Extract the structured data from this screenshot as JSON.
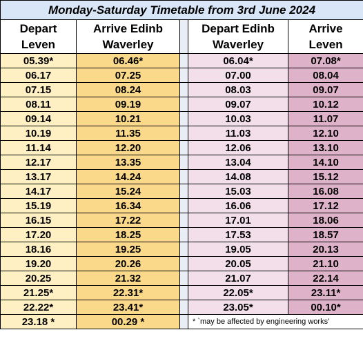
{
  "title": "Monday-Saturday Timetable from 3rd June 2024",
  "headers": {
    "depart_leven": [
      "Depart",
      "Leven"
    ],
    "arrive_edinb": [
      "Arrive Edinb",
      "Waverley"
    ],
    "depart_edinb": [
      "Depart Edinb",
      "Waverley"
    ],
    "arrive_leven": [
      "Arrive",
      "Leven"
    ]
  },
  "southbound": [
    [
      "05.39*",
      "06.46*"
    ],
    [
      "06.17",
      "07.25"
    ],
    [
      "07.15",
      "08.24"
    ],
    [
      "08.11",
      "09.19"
    ],
    [
      "09.14",
      "10.21"
    ],
    [
      "10.19",
      "11.35"
    ],
    [
      "11.14",
      "12.20"
    ],
    [
      "12.17",
      "13.35"
    ],
    [
      "13.17",
      "14.24"
    ],
    [
      "14.17",
      "15.24"
    ],
    [
      "15.19",
      "16.34"
    ],
    [
      "16.15",
      "17.22"
    ],
    [
      "17.20",
      "18.25"
    ],
    [
      "18.16",
      "19.25"
    ],
    [
      "19.20",
      "20.26"
    ],
    [
      "20.25",
      "21.32"
    ],
    [
      "21.25*",
      "22.31*"
    ],
    [
      "22.22*",
      "23.41*"
    ],
    [
      "23.18 *",
      "00.29 *"
    ]
  ],
  "northbound": [
    [
      "06.04*",
      "07.08*"
    ],
    [
      "07.00",
      "08.04"
    ],
    [
      "08.03",
      "09.07"
    ],
    [
      "09.07",
      "10.12"
    ],
    [
      "10.03",
      "11.07"
    ],
    [
      "11.03",
      "12.10"
    ],
    [
      "12.06",
      "13.10"
    ],
    [
      "13.04",
      "14.10"
    ],
    [
      "14.08",
      "15.12"
    ],
    [
      "15.03",
      "16.08"
    ],
    [
      "16.06",
      "17.12"
    ],
    [
      "17.01",
      "18.06"
    ],
    [
      "17.53",
      "18.57"
    ],
    [
      "19.05",
      "20.13"
    ],
    [
      "20.05",
      "21.10"
    ],
    [
      "21.07",
      "22.14"
    ],
    [
      "22.05*",
      "23.11*"
    ],
    [
      "23.05*",
      "00.10*"
    ]
  ],
  "footnote": "* `may be affected by engineering works’",
  "colors": {
    "title_bg": "#d9e6f7",
    "depart_leven_bg": "#fff0c4",
    "arrive_edinb_bg": "#fbd98a",
    "depart_edinb_bg": "#f2dfe9",
    "arrive_leven_bg": "#deb2c8"
  }
}
